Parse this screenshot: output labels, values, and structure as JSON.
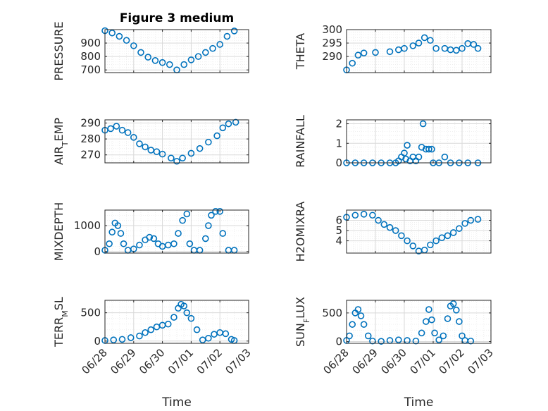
{
  "figure": {
    "title": "Figure 3 medium",
    "xlabel": "Time"
  },
  "colors": {
    "marker": "#0072BD",
    "axes": "#262626",
    "grid": "#d9d9d9",
    "minor_grid": "#ececec"
  },
  "chart_data": [
    {
      "type": "scatter",
      "title": "Figure 3 medium",
      "ylabel": "PRESSURE",
      "xlim": [
        "06/28",
        "07/03"
      ],
      "ylim": [
        680,
        1000
      ],
      "yticks": [
        700,
        800,
        900
      ],
      "grid": true,
      "minor_grid": true,
      "xticklabels_shown": false,
      "x_unit": "days since 06/28 00:00",
      "points": [
        [
          0,
          992
        ],
        [
          0.25,
          975
        ],
        [
          0.5,
          950
        ],
        [
          0.75,
          920
        ],
        [
          1,
          880
        ],
        [
          1.25,
          830
        ],
        [
          1.5,
          795
        ],
        [
          1.75,
          770
        ],
        [
          2,
          755
        ],
        [
          2.25,
          740
        ],
        [
          2.5,
          700
        ],
        [
          2.75,
          740
        ],
        [
          3,
          775
        ],
        [
          3.25,
          800
        ],
        [
          3.5,
          830
        ],
        [
          3.75,
          860
        ],
        [
          4,
          890
        ],
        [
          4.25,
          950
        ],
        [
          4.5,
          990
        ]
      ]
    },
    {
      "type": "scatter",
      "ylabel": "THETA",
      "xlim": [
        "06/28",
        "07/03"
      ],
      "ylim": [
        284,
        300
      ],
      "yticks": [
        290,
        295,
        300
      ],
      "grid": true,
      "minor_grid": true,
      "xticklabels_shown": false,
      "points": [
        [
          0,
          285
        ],
        [
          0.2,
          287.5
        ],
        [
          0.4,
          290.5
        ],
        [
          0.6,
          291.3
        ],
        [
          1,
          291.5
        ],
        [
          1.5,
          291.8
        ],
        [
          1.8,
          292.5
        ],
        [
          2,
          293
        ],
        [
          2.3,
          294
        ],
        [
          2.5,
          295
        ],
        [
          2.7,
          297
        ],
        [
          2.9,
          296
        ],
        [
          3.1,
          293
        ],
        [
          3.4,
          293
        ],
        [
          3.6,
          292.5
        ],
        [
          3.8,
          292.3
        ],
        [
          4,
          293
        ],
        [
          4.2,
          294.8
        ],
        [
          4.4,
          294.5
        ],
        [
          4.55,
          293
        ]
      ]
    },
    {
      "type": "scatter",
      "ylabel": "AIR_TEMP",
      "xlim": [
        "06/28",
        "07/03"
      ],
      "ylim": [
        265,
        292
      ],
      "yticks": [
        270,
        280,
        290
      ],
      "grid": true,
      "minor_grid": true,
      "xticklabels_shown": false,
      "points": [
        [
          0,
          285.5
        ],
        [
          0.2,
          286.5
        ],
        [
          0.4,
          288
        ],
        [
          0.6,
          285.5
        ],
        [
          0.8,
          284
        ],
        [
          1,
          281
        ],
        [
          1.2,
          277
        ],
        [
          1.4,
          275
        ],
        [
          1.6,
          273
        ],
        [
          1.8,
          272
        ],
        [
          2,
          270.5
        ],
        [
          2.3,
          268
        ],
        [
          2.5,
          266
        ],
        [
          2.7,
          268
        ],
        [
          3,
          271
        ],
        [
          3.3,
          274
        ],
        [
          3.6,
          278
        ],
        [
          3.9,
          282
        ],
        [
          4.1,
          287
        ],
        [
          4.3,
          289.5
        ],
        [
          4.55,
          290.5
        ]
      ]
    },
    {
      "type": "scatter",
      "ylabel": "RAINFALL",
      "xlim": [
        "06/28",
        "07/03"
      ],
      "ylim": [
        0,
        2.2
      ],
      "yticks": [
        0,
        1,
        2
      ],
      "grid": true,
      "minor_grid": true,
      "xticklabels_shown": false,
      "points": [
        [
          0,
          0
        ],
        [
          0.3,
          0
        ],
        [
          0.6,
          0
        ],
        [
          0.9,
          0
        ],
        [
          1.2,
          0
        ],
        [
          1.5,
          0
        ],
        [
          1.7,
          0
        ],
        [
          1.8,
          0.1
        ],
        [
          1.9,
          0.3
        ],
        [
          2,
          0.5
        ],
        [
          2.05,
          0.2
        ],
        [
          2.1,
          0.9
        ],
        [
          2.2,
          0.1
        ],
        [
          2.3,
          0.3
        ],
        [
          2.4,
          0.1
        ],
        [
          2.5,
          0.3
        ],
        [
          2.6,
          0.8
        ],
        [
          2.65,
          2
        ],
        [
          2.75,
          0.7
        ],
        [
          2.85,
          0.7
        ],
        [
          2.95,
          0.7
        ],
        [
          3,
          0
        ],
        [
          3.2,
          0
        ],
        [
          3.4,
          0.3
        ],
        [
          3.6,
          0
        ],
        [
          3.9,
          0
        ],
        [
          4.2,
          0
        ],
        [
          4.55,
          0
        ]
      ]
    },
    {
      "type": "scatter",
      "ylabel": "MIXDEPTH",
      "xlim": [
        "06/28",
        "07/03"
      ],
      "ylim": [
        -60,
        1600
      ],
      "yticks": [
        0,
        1000
      ],
      "grid": true,
      "minor_grid": true,
      "xticklabels_shown": false,
      "points": [
        [
          0,
          50
        ],
        [
          0.15,
          300
        ],
        [
          0.25,
          750
        ],
        [
          0.35,
          1100
        ],
        [
          0.45,
          1000
        ],
        [
          0.55,
          700
        ],
        [
          0.65,
          300
        ],
        [
          0.8,
          50
        ],
        [
          1,
          100
        ],
        [
          1.2,
          250
        ],
        [
          1.4,
          450
        ],
        [
          1.55,
          550
        ],
        [
          1.7,
          500
        ],
        [
          1.85,
          300
        ],
        [
          2,
          200
        ],
        [
          2.2,
          250
        ],
        [
          2.4,
          300
        ],
        [
          2.55,
          700
        ],
        [
          2.7,
          1200
        ],
        [
          2.85,
          1450
        ],
        [
          2.95,
          300
        ],
        [
          3.1,
          50
        ],
        [
          3.3,
          50
        ],
        [
          3.5,
          500
        ],
        [
          3.6,
          1000
        ],
        [
          3.7,
          1400
        ],
        [
          3.85,
          1550
        ],
        [
          4,
          1550
        ],
        [
          4.1,
          700
        ],
        [
          4.3,
          50
        ],
        [
          4.5,
          50
        ]
      ]
    },
    {
      "type": "scatter",
      "ylabel": "H2OMIXRA",
      "xlim": [
        "06/28",
        "07/03"
      ],
      "ylim": [
        2.8,
        7
      ],
      "yticks": [
        4,
        5,
        6
      ],
      "grid": true,
      "minor_grid": true,
      "xticklabels_shown": false,
      "points": [
        [
          0,
          6.3
        ],
        [
          0.3,
          6.5
        ],
        [
          0.6,
          6.6
        ],
        [
          0.9,
          6.5
        ],
        [
          1.1,
          6
        ],
        [
          1.3,
          5.6
        ],
        [
          1.5,
          5.3
        ],
        [
          1.7,
          5
        ],
        [
          1.9,
          4.5
        ],
        [
          2.1,
          4
        ],
        [
          2.3,
          3.5
        ],
        [
          2.5,
          3
        ],
        [
          2.7,
          3.1
        ],
        [
          2.9,
          3.6
        ],
        [
          3.1,
          4
        ],
        [
          3.3,
          4.3
        ],
        [
          3.5,
          4.5
        ],
        [
          3.7,
          4.8
        ],
        [
          3.9,
          5.2
        ],
        [
          4.1,
          5.7
        ],
        [
          4.3,
          6
        ],
        [
          4.55,
          6.1
        ]
      ]
    },
    {
      "type": "scatter",
      "ylabel": "TERR_MSL",
      "xlim": [
        "06/28",
        "07/03"
      ],
      "ylim": [
        -40,
        720
      ],
      "yticks": [
        0,
        500
      ],
      "grid": true,
      "minor_grid": true,
      "xticklabels_shown": true,
      "xticklabels": [
        "06/28",
        "06/29",
        "06/30",
        "07/01",
        "07/02",
        "07/03"
      ],
      "xlabel": "Time",
      "points": [
        [
          0,
          10
        ],
        [
          0.3,
          20
        ],
        [
          0.6,
          30
        ],
        [
          0.9,
          60
        ],
        [
          1.2,
          90
        ],
        [
          1.4,
          150
        ],
        [
          1.6,
          200
        ],
        [
          1.8,
          250
        ],
        [
          2,
          280
        ],
        [
          2.2,
          300
        ],
        [
          2.4,
          420
        ],
        [
          2.55,
          580
        ],
        [
          2.65,
          650
        ],
        [
          2.75,
          620
        ],
        [
          2.85,
          500
        ],
        [
          3,
          400
        ],
        [
          3.2,
          200
        ],
        [
          3.4,
          20
        ],
        [
          3.6,
          50
        ],
        [
          3.8,
          120
        ],
        [
          4,
          150
        ],
        [
          4.2,
          130
        ],
        [
          4.4,
          30
        ],
        [
          4.5,
          10
        ]
      ]
    },
    {
      "type": "scatter",
      "ylabel": "SUN_FLUX",
      "xlim": [
        "06/28",
        "07/03"
      ],
      "ylim": [
        -30,
        720
      ],
      "yticks": [
        0,
        500
      ],
      "grid": true,
      "minor_grid": true,
      "xticklabels_shown": true,
      "xticklabels": [
        "06/28",
        "06/29",
        "06/30",
        "07/01",
        "07/02",
        "07/03"
      ],
      "xlabel": "Time",
      "points": [
        [
          0,
          20
        ],
        [
          0.1,
          100
        ],
        [
          0.2,
          300
        ],
        [
          0.3,
          500
        ],
        [
          0.4,
          560
        ],
        [
          0.5,
          450
        ],
        [
          0.6,
          300
        ],
        [
          0.75,
          100
        ],
        [
          0.9,
          10
        ],
        [
          1.2,
          5
        ],
        [
          1.5,
          20
        ],
        [
          1.8,
          30
        ],
        [
          2.1,
          20
        ],
        [
          2.4,
          10
        ],
        [
          2.6,
          150
        ],
        [
          2.75,
          350
        ],
        [
          2.85,
          560
        ],
        [
          2.95,
          380
        ],
        [
          3.05,
          150
        ],
        [
          3.2,
          30
        ],
        [
          3.35,
          100
        ],
        [
          3.5,
          400
        ],
        [
          3.6,
          620
        ],
        [
          3.7,
          660
        ],
        [
          3.8,
          550
        ],
        [
          3.9,
          350
        ],
        [
          4,
          100
        ],
        [
          4.1,
          20
        ],
        [
          4.3,
          10
        ]
      ]
    }
  ]
}
